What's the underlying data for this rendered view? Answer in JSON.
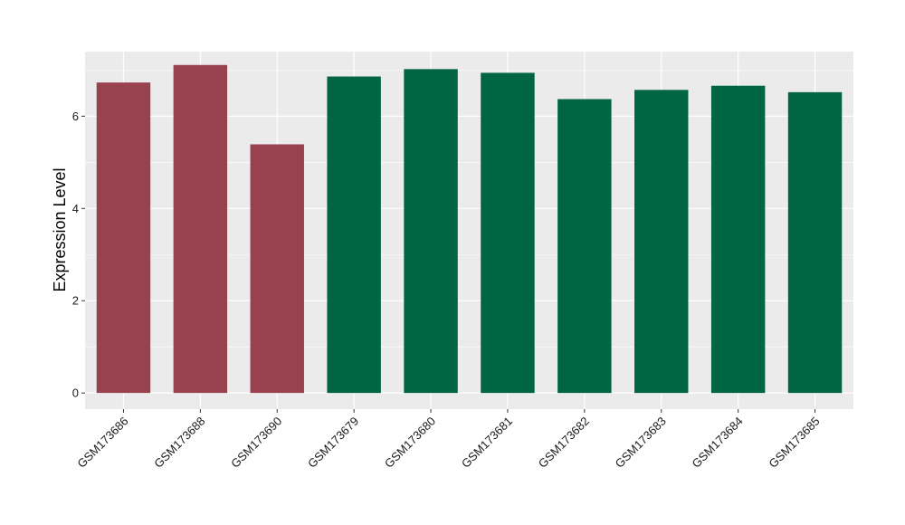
{
  "chart_data": {
    "type": "bar",
    "title": "",
    "xlabel": "",
    "ylabel": "Expression Level",
    "categories": [
      "GSM173686",
      "GSM173688",
      "GSM173690",
      "GSM173679",
      "GSM173680",
      "GSM173681",
      "GSM173682",
      "GSM173683",
      "GSM173684",
      "GSM173685"
    ],
    "values": [
      6.73,
      7.11,
      5.39,
      6.86,
      7.02,
      6.94,
      6.37,
      6.57,
      6.66,
      6.52
    ],
    "groups": [
      "a",
      "a",
      "a",
      "b",
      "b",
      "b",
      "b",
      "b",
      "b",
      "b"
    ],
    "group_colors": {
      "a": "#99424F",
      "b": "#006543"
    },
    "yticks": [
      0,
      2,
      4,
      6
    ],
    "ylim": [
      -0.35,
      7.4
    ],
    "grid": true,
    "panel_background": "#EBEBEB",
    "grid_color": "#FFFFFF"
  }
}
